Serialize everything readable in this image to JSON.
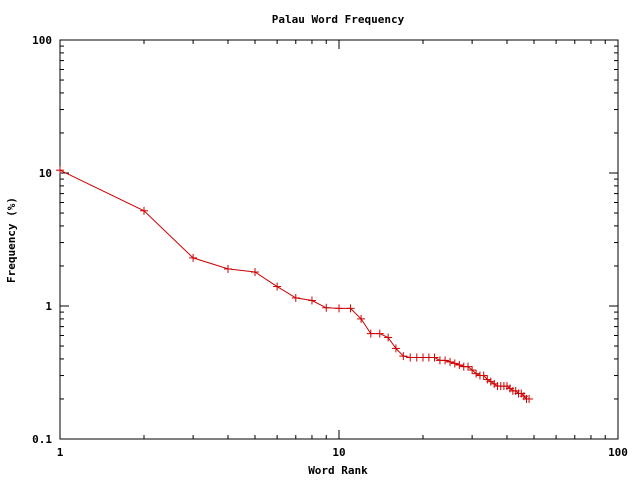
{
  "chart_data": {
    "type": "line",
    "title": "Palau Word Frequency",
    "xlabel": "Word Rank",
    "ylabel": "Frequency (%)",
    "x_scale": "log",
    "y_scale": "log",
    "xlim": [
      1,
      100
    ],
    "ylim": [
      0.1,
      100
    ],
    "grid": false,
    "legend": "none",
    "x_ticks": [
      1,
      10,
      100
    ],
    "x_tick_labels": [
      "1",
      "10",
      "100"
    ],
    "y_ticks": [
      0.1,
      1,
      10,
      100
    ],
    "y_tick_labels": [
      "0.1",
      "1",
      "10",
      "100"
    ],
    "series": [
      {
        "color": "#cc0000",
        "marker": "plus",
        "x": [
          1,
          2,
          3,
          4,
          5,
          6,
          7,
          8,
          9,
          10,
          11,
          12,
          13,
          14,
          15,
          16,
          17,
          18,
          19,
          20,
          21,
          22,
          23,
          24,
          25,
          26,
          27,
          28,
          29,
          30,
          31,
          32,
          33,
          34,
          35,
          36,
          37,
          38,
          39,
          40,
          41,
          42,
          43,
          44,
          45,
          46,
          47,
          48
        ],
        "y": [
          10.5,
          5.2,
          2.3,
          1.9,
          1.8,
          1.4,
          1.15,
          1.1,
          0.97,
          0.96,
          0.96,
          0.8,
          0.62,
          0.62,
          0.58,
          0.48,
          0.42,
          0.41,
          0.41,
          0.41,
          0.41,
          0.41,
          0.39,
          0.39,
          0.38,
          0.37,
          0.36,
          0.35,
          0.35,
          0.33,
          0.31,
          0.3,
          0.3,
          0.28,
          0.27,
          0.26,
          0.25,
          0.25,
          0.25,
          0.25,
          0.24,
          0.23,
          0.23,
          0.22,
          0.22,
          0.21,
          0.2,
          0.2
        ]
      }
    ]
  }
}
